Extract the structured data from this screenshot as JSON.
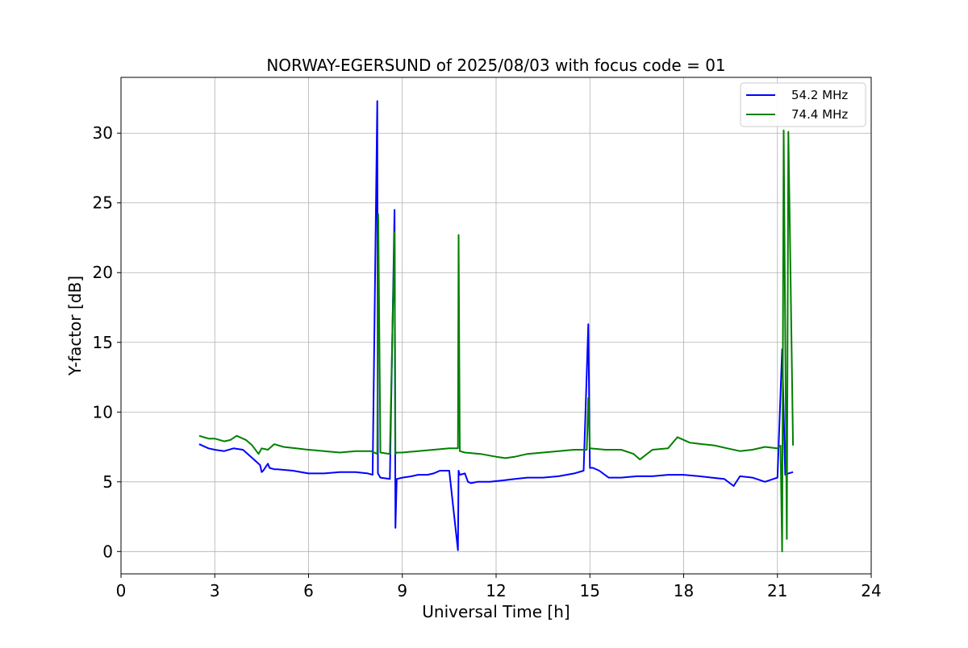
{
  "chart_data": {
    "type": "line",
    "title": "NORWAY-EGERSUND of 2025/08/03 with focus code = 01",
    "xlabel": "Universal Time [h]",
    "ylabel": "Y-factor [dB]",
    "xlim": [
      0,
      24
    ],
    "ylim": [
      -1.6,
      34
    ],
    "xticks": [
      0,
      3,
      6,
      9,
      12,
      15,
      18,
      21,
      24
    ],
    "yticks": [
      0,
      5,
      10,
      15,
      20,
      25,
      30
    ],
    "grid": true,
    "legend_position": "upper-right",
    "series": [
      {
        "name": "54.2 MHz",
        "color": "#0000ff",
        "x": [
          2.5,
          2.8,
          3.0,
          3.3,
          3.6,
          3.9,
          4.1,
          4.3,
          4.45,
          4.5,
          4.55,
          4.7,
          4.75,
          4.9,
          5.0,
          5.5,
          6.0,
          6.5,
          7.0,
          7.5,
          7.9,
          8.05,
          8.2,
          8.22,
          8.3,
          8.6,
          8.75,
          8.78,
          8.82,
          9.0,
          9.3,
          9.5,
          9.8,
          10.0,
          10.2,
          10.5,
          10.78,
          10.8,
          10.84,
          11.0,
          11.1,
          11.2,
          11.4,
          11.8,
          12.2,
          12.6,
          13.0,
          13.5,
          14.0,
          14.5,
          14.8,
          14.95,
          15.0,
          15.1,
          15.3,
          15.6,
          16.0,
          16.5,
          17.0,
          17.5,
          18.0,
          18.5,
          18.9,
          19.3,
          19.6,
          19.8,
          20.2,
          20.6,
          21.0,
          21.15,
          21.25,
          21.35,
          21.5
        ],
        "y": [
          7.7,
          7.4,
          7.3,
          7.2,
          7.4,
          7.3,
          6.9,
          6.5,
          6.2,
          5.7,
          5.8,
          6.3,
          6.0,
          5.9,
          5.9,
          5.8,
          5.6,
          5.6,
          5.7,
          5.7,
          5.6,
          5.5,
          32.3,
          5.6,
          5.3,
          5.2,
          24.5,
          1.7,
          5.2,
          5.3,
          5.4,
          5.5,
          5.5,
          5.6,
          5.8,
          5.8,
          0.1,
          5.8,
          5.5,
          5.6,
          5.0,
          4.9,
          5.0,
          5.0,
          5.1,
          5.2,
          5.3,
          5.3,
          5.4,
          5.6,
          5.8,
          16.3,
          6.0,
          6.0,
          5.8,
          5.3,
          5.3,
          5.4,
          5.4,
          5.5,
          5.5,
          5.4,
          5.3,
          5.2,
          4.7,
          5.4,
          5.3,
          5.0,
          5.3,
          14.5,
          5.5,
          5.6,
          5.7
        ]
      },
      {
        "name": "74.4 MHz",
        "color": "#008000",
        "x": [
          2.5,
          2.8,
          3.0,
          3.3,
          3.5,
          3.7,
          4.0,
          4.2,
          4.4,
          4.5,
          4.7,
          4.9,
          5.2,
          5.6,
          6.0,
          6.5,
          7.0,
          7.5,
          8.0,
          8.2,
          8.23,
          8.3,
          8.6,
          8.75,
          8.78,
          8.82,
          9.0,
          9.5,
          10.0,
          10.5,
          10.78,
          10.8,
          10.84,
          11.0,
          11.5,
          12.0,
          12.3,
          12.6,
          13.0,
          13.5,
          14.0,
          14.5,
          14.9,
          14.95,
          15.0,
          15.5,
          16.0,
          16.4,
          16.6,
          17.0,
          17.5,
          17.8,
          18.2,
          18.6,
          19.0,
          19.4,
          19.8,
          20.2,
          20.6,
          21.0,
          21.1,
          21.15,
          21.2,
          21.3,
          21.35,
          21.4,
          21.5
        ],
        "y": [
          8.3,
          8.1,
          8.1,
          7.9,
          8.0,
          8.3,
          8.0,
          7.6,
          7.0,
          7.4,
          7.3,
          7.7,
          7.5,
          7.4,
          7.3,
          7.2,
          7.1,
          7.2,
          7.2,
          7.0,
          24.2,
          7.1,
          7.0,
          22.9,
          7.0,
          7.1,
          7.1,
          7.2,
          7.3,
          7.4,
          7.4,
          22.7,
          7.2,
          7.1,
          7.0,
          6.8,
          6.7,
          6.8,
          7.0,
          7.1,
          7.2,
          7.3,
          7.3,
          11.0,
          7.4,
          7.3,
          7.3,
          7.0,
          6.6,
          7.3,
          7.4,
          8.2,
          7.8,
          7.7,
          7.6,
          7.4,
          7.2,
          7.3,
          7.5,
          7.4,
          7.6,
          0.0,
          30.2,
          0.9,
          30.1,
          22.6,
          7.6
        ]
      }
    ]
  }
}
